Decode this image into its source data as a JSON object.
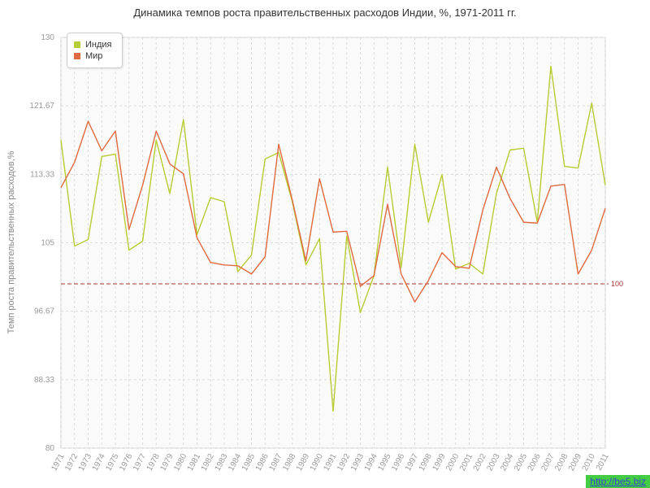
{
  "title": "Динамика темпов роста правительственных расходов Индии, %, 1971-2011 гг.",
  "ylabel": "Темп роста правительственных расходов,%",
  "watermark": "http://be5.biz",
  "reference_line": {
    "value": 100,
    "label": "100",
    "color": "#aa3333"
  },
  "chart_data": {
    "type": "line",
    "title": "Динамика темпов роста правительственных расходов Индии, %, 1971-2011 гг.",
    "xlabel": "",
    "ylabel": "Темп роста правительственных расходов,%",
    "ylim": [
      80,
      130
    ],
    "yticks": [
      130,
      121.67,
      113.33,
      105,
      96.67,
      88.33,
      80
    ],
    "grid": true,
    "legend_position": "top-left",
    "x": [
      1971,
      1972,
      1973,
      1974,
      1975,
      1976,
      1977,
      1978,
      1979,
      1980,
      1981,
      1982,
      1983,
      1984,
      1985,
      1986,
      1987,
      1988,
      1989,
      1990,
      1991,
      1992,
      1993,
      1994,
      1995,
      1996,
      1997,
      1998,
      1999,
      2000,
      2001,
      2002,
      2003,
      2004,
      2005,
      2006,
      2007,
      2008,
      2009,
      2010,
      2011
    ],
    "series": [
      {
        "name": "Индия",
        "color": "#b8cc33",
        "values": [
          117.5,
          104.6,
          105.4,
          115.5,
          115.8,
          104.1,
          105.2,
          117.5,
          111.0,
          120.0,
          106.0,
          110.5,
          110.0,
          101.5,
          103.5,
          115.2,
          116.0,
          110.0,
          102.3,
          105.5,
          84.5,
          105.8,
          96.5,
          101.0,
          114.2,
          102.0,
          117.0,
          107.5,
          113.3,
          101.8,
          102.5,
          101.2,
          111.0,
          116.3,
          116.5,
          107.5,
          126.5,
          114.3,
          114.1,
          122.0,
          112.0
        ]
      },
      {
        "name": "Мир",
        "color": "#e06a40",
        "values": [
          111.7,
          114.8,
          119.8,
          116.2,
          118.6,
          106.6,
          112.0,
          118.6,
          114.6,
          113.4,
          105.6,
          102.6,
          102.3,
          102.2,
          101.2,
          103.3,
          117.0,
          110.2,
          102.8,
          112.8,
          106.3,
          106.4,
          99.7,
          101.0,
          109.7,
          101.2,
          97.8,
          100.4,
          103.8,
          102.1,
          101.9,
          109.0,
          114.2,
          110.4,
          107.5,
          107.4,
          111.9,
          112.1,
          101.2,
          104.1,
          109.2
        ]
      }
    ]
  }
}
